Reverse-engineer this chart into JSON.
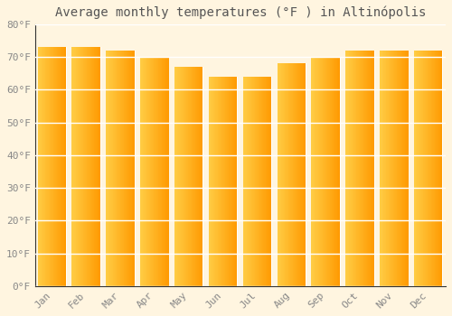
{
  "title": "Average monthly temperatures (°F ) in Altinópolis",
  "months": [
    "Jan",
    "Feb",
    "Mar",
    "Apr",
    "May",
    "Jun",
    "Jul",
    "Aug",
    "Sep",
    "Oct",
    "Nov",
    "Dec"
  ],
  "values": [
    73,
    73,
    72,
    70,
    67,
    64,
    64,
    68,
    70,
    72,
    72,
    72
  ],
  "bar_color_left": "#FFCC44",
  "bar_color_right": "#FFA000",
  "background_color": "#FFF5E0",
  "grid_color": "#FFFFFF",
  "ylim": [
    0,
    80
  ],
  "yticks": [
    0,
    10,
    20,
    30,
    40,
    50,
    60,
    70,
    80
  ],
  "ytick_labels": [
    "0°F",
    "10°F",
    "20°F",
    "30°F",
    "40°F",
    "50°F",
    "60°F",
    "70°F",
    "80°F"
  ],
  "title_fontsize": 10,
  "tick_fontsize": 8,
  "tick_color": "#888888",
  "title_color": "#555555",
  "title_font": "monospace",
  "bar_width": 0.85,
  "gap_color": "#FFFFFF"
}
